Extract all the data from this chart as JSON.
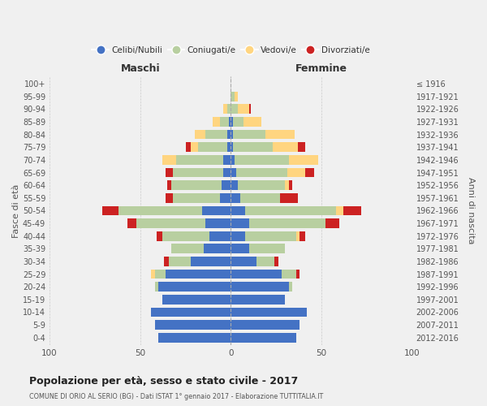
{
  "age_groups": [
    "0-4",
    "5-9",
    "10-14",
    "15-19",
    "20-24",
    "25-29",
    "30-34",
    "35-39",
    "40-44",
    "45-49",
    "50-54",
    "55-59",
    "60-64",
    "65-69",
    "70-74",
    "75-79",
    "80-84",
    "85-89",
    "90-94",
    "95-99",
    "100+"
  ],
  "birth_years": [
    "2012-2016",
    "2007-2011",
    "2002-2006",
    "1997-2001",
    "1992-1996",
    "1987-1991",
    "1982-1986",
    "1977-1981",
    "1972-1976",
    "1967-1971",
    "1962-1966",
    "1957-1961",
    "1952-1956",
    "1947-1951",
    "1942-1946",
    "1937-1941",
    "1932-1936",
    "1927-1931",
    "1922-1926",
    "1917-1921",
    "≤ 1916"
  ],
  "males": {
    "celibi": [
      40,
      42,
      44,
      38,
      40,
      36,
      22,
      15,
      12,
      14,
      16,
      6,
      5,
      4,
      4,
      2,
      2,
      1,
      0,
      0,
      0
    ],
    "coniugati": [
      0,
      0,
      0,
      0,
      2,
      6,
      12,
      18,
      26,
      38,
      46,
      26,
      28,
      28,
      26,
      16,
      12,
      5,
      2,
      0,
      0
    ],
    "vedovi": [
      0,
      0,
      0,
      0,
      0,
      2,
      0,
      0,
      0,
      0,
      0,
      0,
      0,
      0,
      8,
      4,
      6,
      4,
      2,
      0,
      0
    ],
    "divorziati": [
      0,
      0,
      0,
      0,
      0,
      0,
      3,
      0,
      3,
      5,
      9,
      4,
      2,
      4,
      0,
      3,
      0,
      0,
      0,
      0,
      0
    ]
  },
  "females": {
    "nubili": [
      36,
      38,
      42,
      30,
      32,
      28,
      14,
      10,
      8,
      10,
      8,
      5,
      4,
      3,
      2,
      1,
      1,
      1,
      0,
      0,
      0
    ],
    "coniugate": [
      0,
      0,
      0,
      0,
      2,
      8,
      10,
      20,
      28,
      42,
      50,
      22,
      26,
      28,
      30,
      22,
      18,
      6,
      4,
      2,
      0
    ],
    "vedove": [
      0,
      0,
      0,
      0,
      0,
      0,
      0,
      0,
      2,
      0,
      4,
      0,
      2,
      10,
      16,
      14,
      16,
      10,
      6,
      2,
      0
    ],
    "divorziate": [
      0,
      0,
      0,
      0,
      0,
      2,
      2,
      0,
      3,
      8,
      10,
      10,
      2,
      5,
      0,
      4,
      0,
      0,
      1,
      0,
      0
    ]
  },
  "colors": {
    "celibi": "#4472c4",
    "coniugati": "#b8cfa0",
    "vedovi": "#ffd580",
    "divorziati": "#cc2222"
  },
  "title": "Popolazione per età, sesso e stato civile - 2017",
  "subtitle": "COMUNE DI ORIO AL SERIO (BG) - Dati ISTAT 1° gennaio 2017 - Elaborazione TUTTITALIA.IT",
  "xlabel_left": "Maschi",
  "xlabel_right": "Femmine",
  "ylabel_left": "Fasce di età",
  "ylabel_right": "Anni di nascita",
  "xlim": 100,
  "legend_labels": [
    "Celibi/Nubili",
    "Coniugati/e",
    "Vedovi/e",
    "Divorziati/e"
  ],
  "background_color": "#f0f0f0",
  "grid_color": "#cccccc"
}
